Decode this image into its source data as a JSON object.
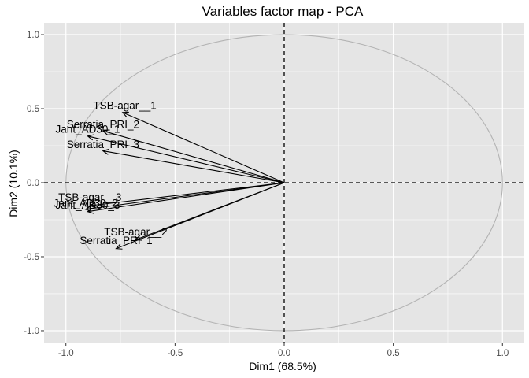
{
  "chart_data": {
    "type": "scatter",
    "title": "Variables factor map - PCA",
    "xlabel": "Dim1 (68.5%)",
    "ylabel": "Dim2 (10.1%)",
    "xlim": [
      -1.1,
      1.1
    ],
    "ylim": [
      -1.08,
      1.08
    ],
    "x_ticks": [
      -1.0,
      -0.5,
      0.0,
      0.5,
      1.0
    ],
    "y_ticks": [
      -1.0,
      -0.5,
      0.0,
      0.5,
      1.0
    ],
    "x_tick_labels": [
      "-1.0",
      "-0.5",
      "0.0",
      "0.5",
      "1.0"
    ],
    "y_tick_labels": [
      "-1.0",
      "-0.5",
      "0.0",
      "0.5",
      "1.0"
    ],
    "grid": true,
    "background": "#e5e5e5",
    "grid_color": "#ffffff",
    "circle_color": "#b3b3b3",
    "arrow_color": "#000000",
    "variables": [
      {
        "name": "TSB-agar__1",
        "x": -0.74,
        "y": 0.475,
        "label_x": -0.73,
        "label_y": 0.52
      },
      {
        "name": "Serratia_PRI_2",
        "x": -0.83,
        "y": 0.35,
        "label_x": -0.83,
        "label_y": 0.39
      },
      {
        "name": "Jant_AD30_1",
        "x": -0.9,
        "y": 0.315,
        "label_x": -0.9,
        "label_y": 0.36
      },
      {
        "name": "Serratia_PRI_3",
        "x": -0.83,
        "y": 0.215,
        "label_x": -0.83,
        "label_y": 0.255
      },
      {
        "name": "TSB-agar__3",
        "x": -0.89,
        "y": -0.155,
        "label_x": -0.89,
        "label_y": -0.1
      },
      {
        "name": "Jant_AD30_2",
        "x": -0.91,
        "y": -0.18,
        "label_x": -0.91,
        "label_y": -0.14
      },
      {
        "name": "Jant_AD30_3",
        "x": -0.9,
        "y": -0.195,
        "label_x": -0.9,
        "label_y": -0.155
      },
      {
        "name": "TSB-agar__2",
        "x": -0.68,
        "y": -0.385,
        "label_x": -0.68,
        "label_y": -0.335
      },
      {
        "name": "Serratia_PRI_1",
        "x": -0.77,
        "y": -0.445,
        "label_x": -0.77,
        "label_y": -0.395
      }
    ]
  }
}
